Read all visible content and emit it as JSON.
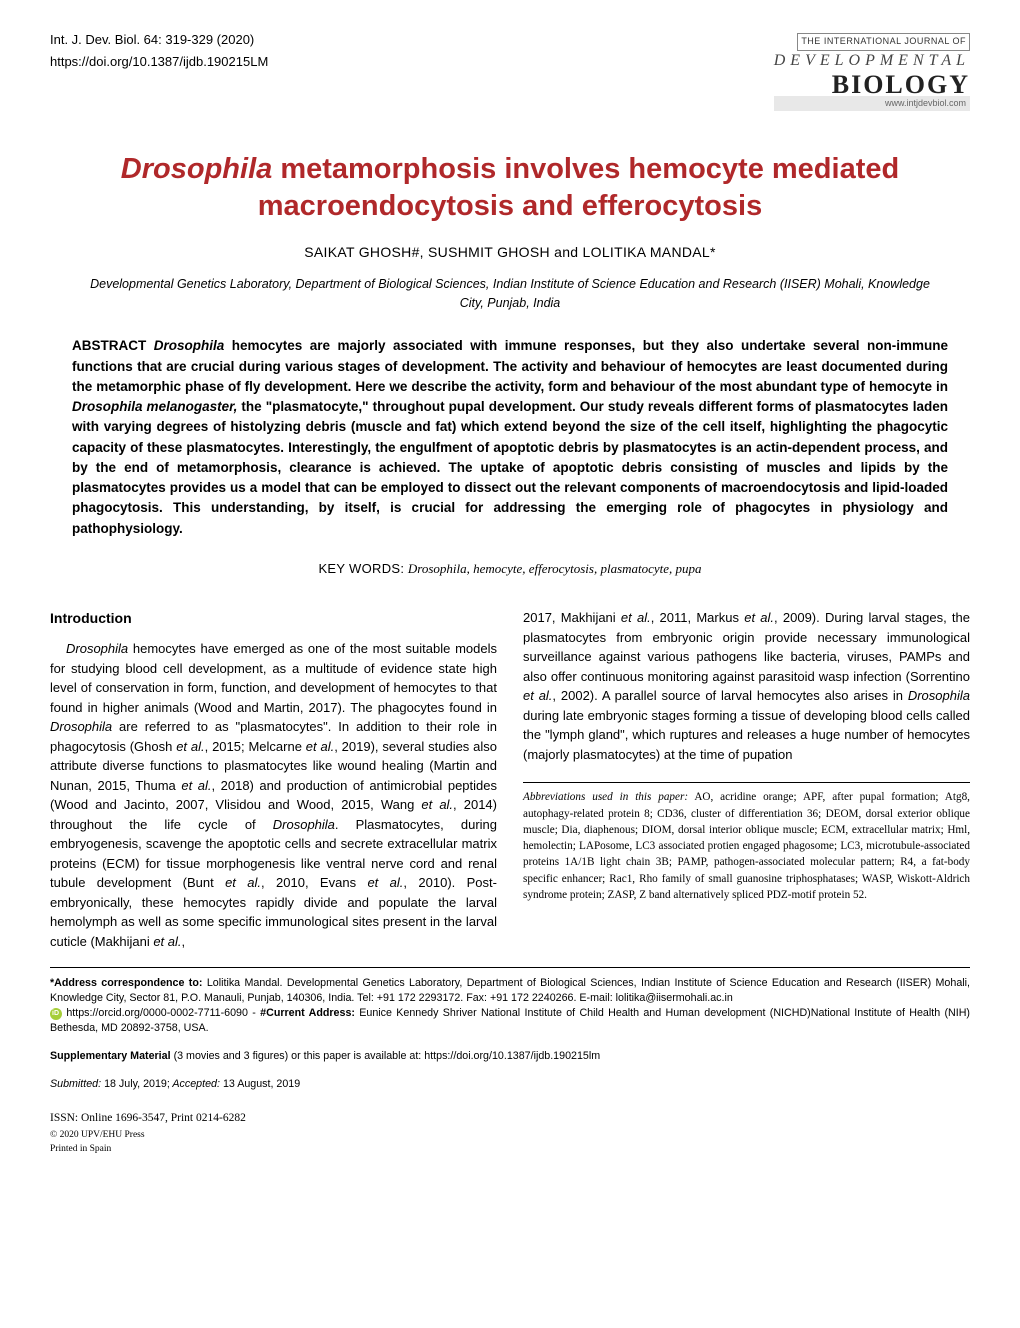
{
  "header": {
    "journal_line1": "Int. J. Dev. Biol. 64: 319-329 (2020)",
    "journal_line2": "https://doi.org/10.1387/ijdb.190215LM",
    "logo_top": "THE INTERNATIONAL JOURNAL OF",
    "logo_dev": "DEVELOPMENTAL",
    "logo_bio": "BIOLOGY",
    "logo_url": "www.intjdevbiol.com"
  },
  "title": "Drosophila metamorphosis involves hemocyte mediated macroendocytosis and efferocytosis",
  "authors": "SAIKAT GHOSH#, SUSHMIT GHOSH and LOLITIKA MANDAL*",
  "affiliation": "Developmental Genetics Laboratory, Department of Biological Sciences, Indian Institute of Science Education and Research (IISER) Mohali, Knowledge City, Punjab, India",
  "abstract": {
    "label": "ABSTRACT",
    "text": "Drosophila hemocytes are majorly associated with immune responses, but they also undertake several non-immune functions that are crucial during various stages of development. The activity and behaviour of hemocytes are least documented during the metamorphic phase of fly development. Here we describe the activity, form and behaviour of the most abundant type of hemocyte in Drosophila melanogaster, the \"plasmatocyte,\" throughout pupal development. Our study reveals different forms of plasmatocytes laden with varying degrees of histolyzing debris (muscle and fat) which extend beyond the size of the cell itself, highlighting the phagocytic capacity of these plasmatocytes. Interestingly, the engulfment of apoptotic debris by plasmatocytes is an actin-dependent process, and by the end of metamorphosis, clearance is achieved. The uptake of apoptotic debris consisting of muscles and lipids by the plasmatocytes provides us a model that can be employed to dissect out the relevant components of macroendocytosis and lipid-loaded phagocytosis. This understanding, by itself, is crucial for addressing the emerging role of phagocytes in physiology and pathophysiology."
  },
  "keywords": {
    "label": "KEY WORDS:",
    "text": "Drosophila, hemocyte, efferocytosis, plasmatocyte, pupa"
  },
  "section_head": "Introduction",
  "left_col": "Drosophila hemocytes have emerged as one of the most suitable models for studying blood cell development, as a multitude of evidence state high level of conservation in form, function, and development of hemocytes to that found in higher animals (Wood and Martin, 2017). The phagocytes found in Drosophila are referred to as \"plasmatocytes\". In addition to their role in phagocytosis (Ghosh et al., 2015; Melcarne et al., 2019), several studies also attribute diverse functions to plasmatocytes like wound healing (Martin and Nunan, 2015, Thuma et al., 2018) and production of antimicrobial peptides (Wood and Jacinto, 2007, Vlisidou and Wood, 2015, Wang et al., 2014) throughout the life cycle of Drosophila. Plasmatocytes, during embryogenesis, scavenge the apoptotic cells and secrete extracellular matrix proteins (ECM) for tissue morphogenesis like ventral nerve cord and renal tubule development (Bunt et al., 2010, Evans et al., 2010). Post-embryonically, these hemocytes rapidly divide and populate the larval hemolymph as well as some specific immunological sites present in the larval cuticle (Makhijani et al.,",
  "right_col": "2017, Makhijani et al., 2011, Markus et al., 2009). During larval stages, the plasmatocytes from embryonic origin provide necessary immunological surveillance against various pathogens like bacteria, viruses, PAMPs and also offer continuous monitoring against parasitoid wasp infection (Sorrentino et al., 2002). A parallel source of larval hemocytes also arises in Drosophila during late embryonic stages forming a tissue of developing blood cells called the \"lymph gland\", which ruptures and releases a huge number of hemocytes (majorly plasmatocytes) at the time of pupation",
  "abbrev": {
    "label": "Abbreviations used in this paper:",
    "text": "AO, acridine orange; APF, after pupal formation; Atg8, autophagy-related protein 8; CD36, cluster of differentiation 36; DEOM, dorsal exterior oblique muscle; Dia, diaphenous; DIOM, dorsal interior oblique muscle; ECM, extracellular matrix; Hml, hemolectin; LAPosome, LC3 associated protien engaged phagosome; LC3, microtubule-associated proteins 1A/1B light chain 3B; PAMP, pathogen-associated molecular pattern; R4, a fat-body specific enhancer; Rac1, Rho family of small guanosine triphosphatases; WASP, Wiskott-Aldrich syndrome protein; ZASP, Z band alternatively spliced PDZ-motif protein 52."
  },
  "correspondence": {
    "label": "*Address correspondence to:",
    "text": "Lolitika Mandal. Developmental Genetics Laboratory, Department of Biological Sciences, Indian Institute of Science Education and Research (IISER) Mohali, Knowledge City, Sector 81, P.O. Manauli, Punjab, 140306, India. Tel: +91 172 2293172. Fax: +91 172 2240266. E-mail: lolitika@iisermohali.ac.in",
    "orcid_text": "https://orcid.org/0000-0002-7711-6090 -",
    "current_label": "#Current Address:",
    "current_text": "Eunice Kennedy Shriver National Institute of Child Health and Human development (NICHD)National Institute of Health (NIH) Bethesda, MD 20892-3758, USA."
  },
  "supplementary": {
    "label": "Supplementary Material",
    "text": "(3 movies and 3 figures) or this paper is available at: https://doi.org/10.1387/ijdb.190215lm"
  },
  "dates": {
    "submitted_label": "Submitted:",
    "submitted": "18 July, 2019;",
    "accepted_label": "Accepted:",
    "accepted": "13 August, 2019"
  },
  "issn": {
    "line1": "ISSN: Online 1696-3547, Print 0214-6282",
    "line2": "© 2020 UPV/EHU Press",
    "line3": "Printed in Spain"
  },
  "colors": {
    "title": "#b0282a",
    "text": "#000000",
    "background": "#ffffff",
    "orcid_green": "#a6ce39"
  }
}
